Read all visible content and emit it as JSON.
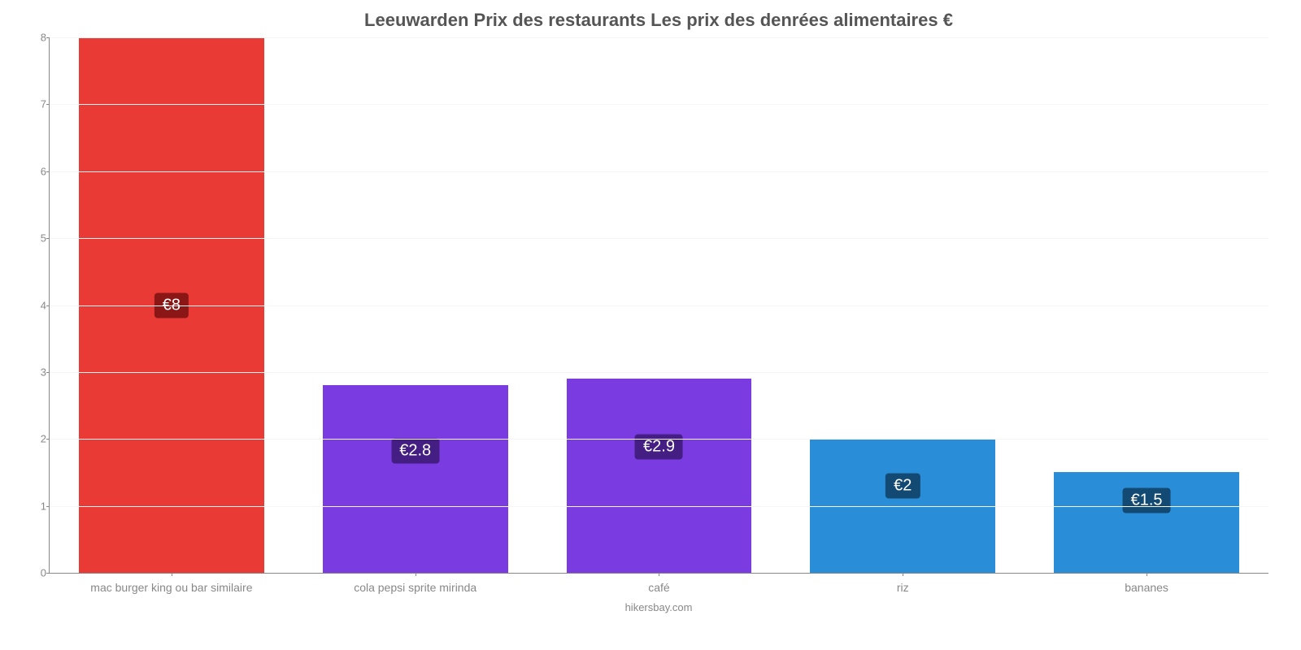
{
  "chart": {
    "type": "bar",
    "title": "Leeuwarden Prix des restaurants Les prix des denrées alimentaires €",
    "title_fontsize": 22,
    "title_color": "#555555",
    "background_color": "#ffffff",
    "grid_color": "#f5f5f5",
    "axis_color": "#888888",
    "tick_label_color": "#888888",
    "tick_label_fontsize": 13,
    "credit": "hikersbay.com",
    "credit_color": "#888888",
    "credit_fontsize": 13,
    "y_axis": {
      "min": 0,
      "max": 8,
      "tick_step": 1,
      "ticks": [
        0,
        1,
        2,
        3,
        4,
        5,
        6,
        7,
        8
      ]
    },
    "bar_width_ratio": 0.76,
    "categories": [
      "mac burger king ou bar similaire",
      "cola pepsi sprite mirinda",
      "café",
      "riz",
      "bananes"
    ],
    "values": [
      8,
      2.8,
      2.9,
      2,
      1.5
    ],
    "value_labels": [
      "€8",
      "€2.8",
      "€2.9",
      "€2",
      "€1.5"
    ],
    "bar_colors": [
      "#ea3a36",
      "#7a3ce0",
      "#7a3ce0",
      "#2a8dd8",
      "#2a8dd8"
    ],
    "value_label_bg_colors": [
      "#8a1616",
      "#441e82",
      "#441e82",
      "#134a74",
      "#134a74"
    ],
    "value_label_color": "#ffffff",
    "value_label_fontsize": 20,
    "value_label_positions_pct": [
      50,
      35,
      35,
      35,
      28
    ]
  }
}
